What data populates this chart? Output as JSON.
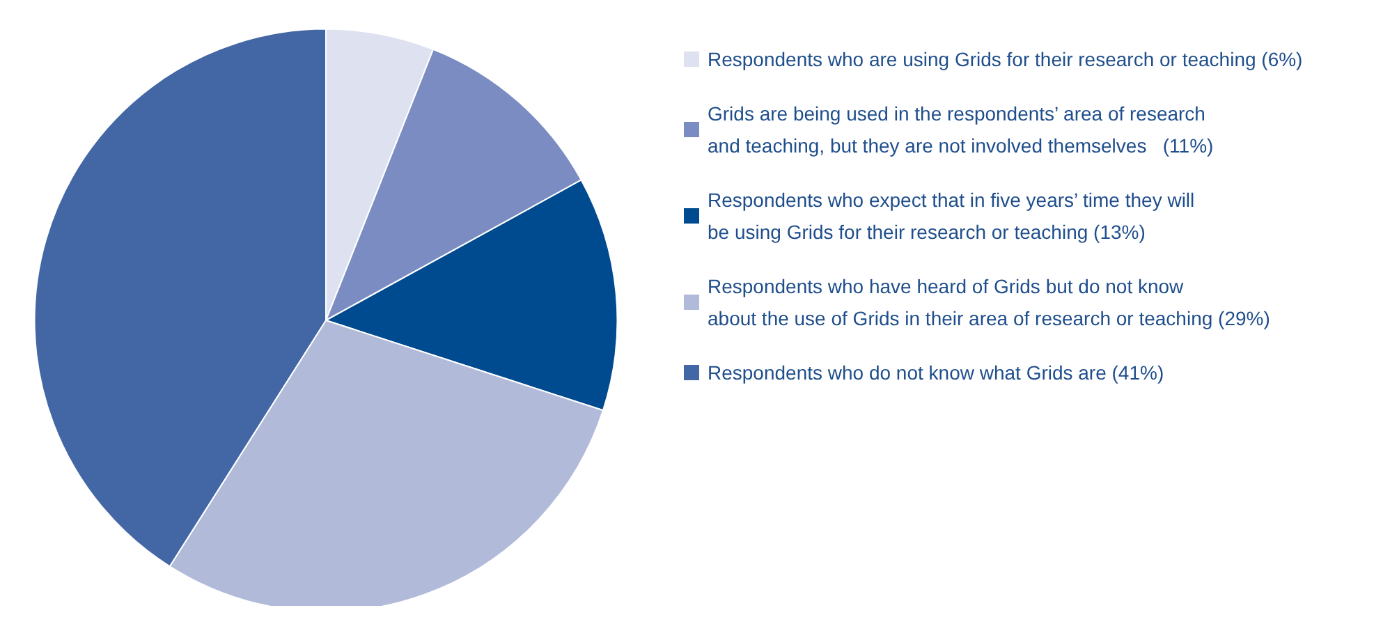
{
  "chart_data": {
    "type": "pie",
    "categories": [
      "Respondents who are using Grids for their research or teaching (6%)",
      "Grids are being used in the respondents’ area of research\nand teaching, but they are not involved themselves   (11%)",
      "Respondents who expect that in five years’ time they will\nbe using Grids for their research or teaching (13%)",
      "Respondents who have heard of Grids but do not know\nabout the use of Grids in their area of research or teaching (29%)",
      "Respondents who do not know what Grids are (41%)"
    ],
    "values": [
      6,
      11,
      13,
      29,
      41
    ],
    "colors": [
      "#dde1f0",
      "#7b8cc2",
      "#004a8f",
      "#b1bad9",
      "#4366a5"
    ],
    "legend": "right"
  }
}
